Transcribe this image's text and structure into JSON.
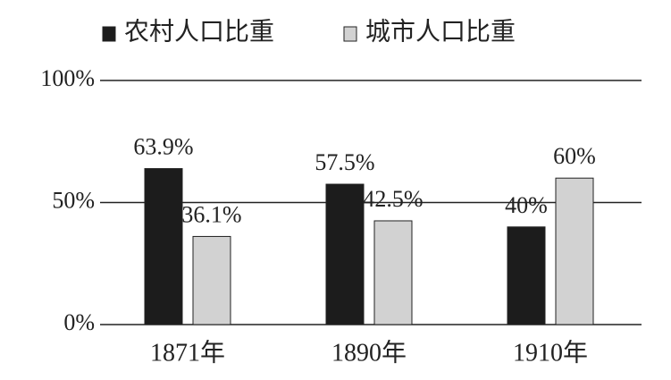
{
  "chart_data": {
    "type": "bar",
    "categories": [
      "1871年",
      "1890年",
      "1910年"
    ],
    "series": [
      {
        "name": "农村人口比重",
        "color": "#1c1c1c",
        "values": [
          63.9,
          57.5,
          40
        ],
        "value_labels": [
          "63.9%",
          "57.5%",
          "40%"
        ]
      },
      {
        "name": "城市人口比重",
        "color": "#d2d2d2",
        "values": [
          36.1,
          42.5,
          60
        ],
        "value_labels": [
          "36.1%",
          "42.5%",
          "60%"
        ]
      }
    ],
    "ylim": [
      0,
      100
    ],
    "yticks": [
      {
        "value": 0,
        "label": "0%"
      },
      {
        "value": 50,
        "label": "50%"
      },
      {
        "value": 100,
        "label": "100%"
      }
    ],
    "grid": true
  }
}
